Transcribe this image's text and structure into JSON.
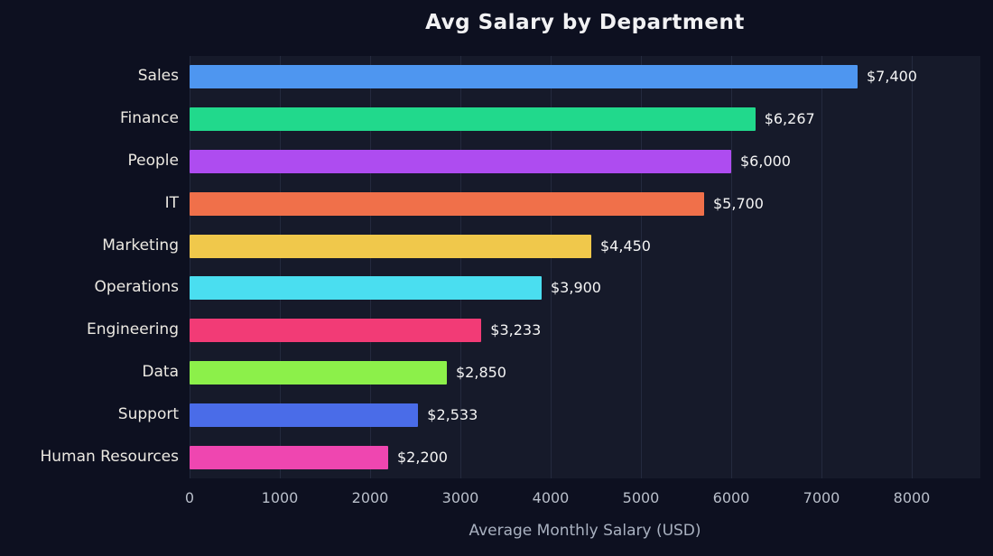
{
  "chart_data": {
    "type": "bar",
    "orientation": "horizontal",
    "title": "Avg Salary by Department",
    "xlabel": "Average Monthly Salary (USD)",
    "categories": [
      "Sales",
      "Finance",
      "People",
      "IT",
      "Marketing",
      "Operations",
      "Engineering",
      "Data",
      "Support",
      "Human Resources"
    ],
    "values": [
      7400,
      6267,
      6000,
      5700,
      4450,
      3900,
      3233,
      2850,
      2533,
      2200
    ],
    "value_labels": [
      "$7,400",
      "$6,267",
      "$6,000",
      "$5,700",
      "$4,450",
      "$3,900",
      "$3,233",
      "$2,850",
      "$2,533",
      "$2,200"
    ],
    "bar_colors": [
      "#4e96f0",
      "#21d98c",
      "#ae4cf0",
      "#f0704a",
      "#f0c84b",
      "#4adef0",
      "#f23b76",
      "#8cf04a",
      "#4a6ce8",
      "#ef46b0"
    ],
    "xlim": [
      0,
      8760
    ],
    "xticks": [
      0,
      1000,
      2000,
      3000,
      4000,
      5000,
      6000,
      7000,
      8000
    ],
    "xtick_labels": [
      "0",
      "1000",
      "2000",
      "3000",
      "4000",
      "5000",
      "6000",
      "7000",
      "8000"
    ],
    "grid": true,
    "legend": "none",
    "background_color": "#0d1020",
    "plot_background_color": "#161a2a",
    "gridline_color": "#242a3e"
  }
}
